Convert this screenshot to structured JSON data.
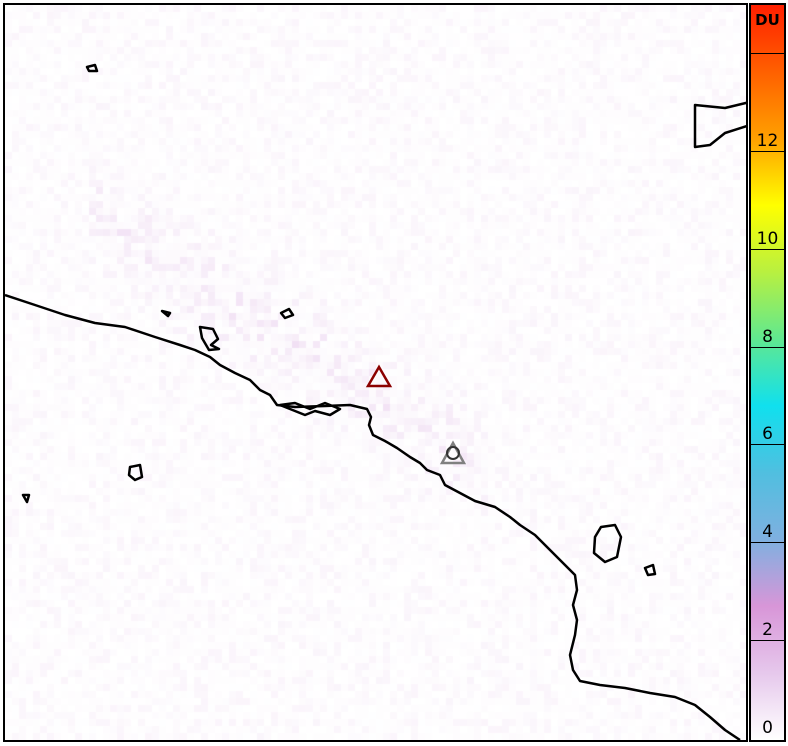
{
  "map": {
    "markers": [
      {
        "name": "volcano-red",
        "color": "#8b0000",
        "shape": "triangle"
      },
      {
        "name": "volcano-gray",
        "color": "#808080",
        "shape": "triangle-with-circle"
      }
    ],
    "plume_color": "#d8a8e0"
  },
  "colorbar": {
    "unit": "DU",
    "tick_labels": [
      "0",
      "2",
      "4",
      "6",
      "8",
      "10",
      "12"
    ],
    "range": [
      0,
      14
    ],
    "colors": [
      "#ffffff",
      "#e6c8ec",
      "#d896d8",
      "#7fb0e0",
      "#50bfe0",
      "#10e0ee",
      "#60e890",
      "#b8f040",
      "#ffff00",
      "#ffa000",
      "#ff6000",
      "#ff2000"
    ]
  }
}
